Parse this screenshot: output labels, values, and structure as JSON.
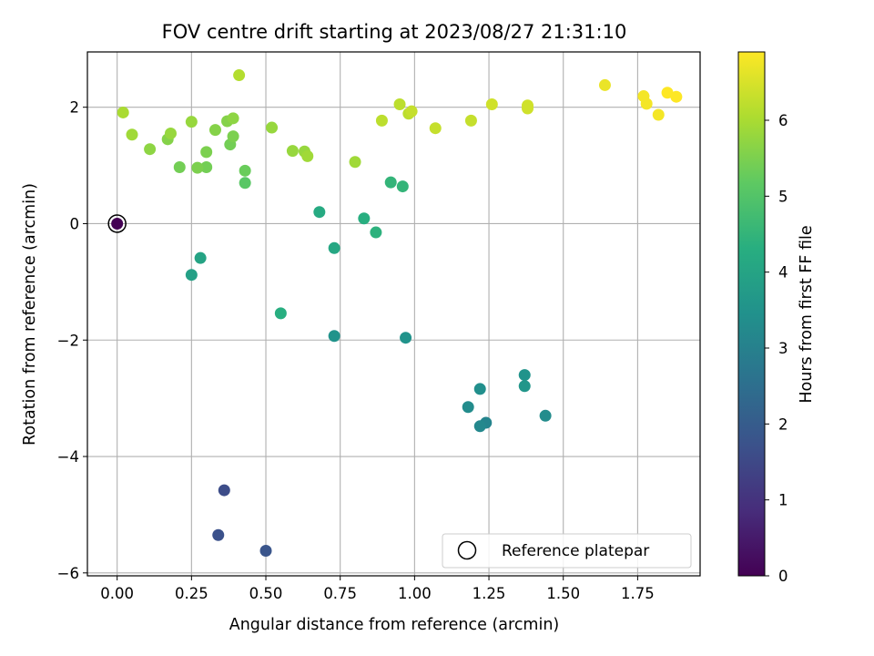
{
  "chart_data": {
    "type": "scatter",
    "title": "FOV centre drift starting at 2023/08/27 21:31:10",
    "xlabel": "Angular distance from reference (arcmin)",
    "ylabel": "Rotation from reference (arcmin)",
    "xlim": [
      -0.1,
      1.96
    ],
    "ylim": [
      -6.05,
      2.95
    ],
    "xticks": [
      0.0,
      0.25,
      0.5,
      0.75,
      1.0,
      1.25,
      1.5,
      1.75
    ],
    "xtick_labels": [
      "0.00",
      "0.25",
      "0.50",
      "0.75",
      "1.00",
      "1.25",
      "1.50",
      "1.75"
    ],
    "yticks": [
      -6,
      -4,
      -2,
      0,
      2
    ],
    "ytick_labels": [
      "−6",
      "−4",
      "−2",
      "0",
      "2"
    ],
    "grid": true,
    "colorbar": {
      "label": "Hours from first FF file",
      "range": [
        0,
        6.9
      ],
      "ticks": [
        0,
        1,
        2,
        3,
        4,
        5,
        6
      ],
      "tick_labels": [
        "0",
        "1",
        "2",
        "3",
        "4",
        "5",
        "6"
      ],
      "colormap": "viridis"
    },
    "legend": {
      "placement": "lower-right",
      "entries": [
        {
          "label": "Reference platepar",
          "marker": "open-circle"
        }
      ]
    },
    "reference_point": {
      "x": 0.0,
      "y": 0.0
    },
    "points": [
      {
        "x": 0.0,
        "y": 0.0,
        "h": 0.0
      },
      {
        "x": 0.36,
        "y": -4.58,
        "h": 1.6
      },
      {
        "x": 0.34,
        "y": -5.35,
        "h": 1.7
      },
      {
        "x": 0.5,
        "y": -5.62,
        "h": 1.8
      },
      {
        "x": 1.24,
        "y": -3.42,
        "h": 3.1
      },
      {
        "x": 1.22,
        "y": -3.48,
        "h": 3.2
      },
      {
        "x": 1.18,
        "y": -3.15,
        "h": 3.3
      },
      {
        "x": 1.22,
        "y": -2.84,
        "h": 3.4
      },
      {
        "x": 1.44,
        "y": -3.3,
        "h": 3.3
      },
      {
        "x": 1.37,
        "y": -2.6,
        "h": 3.5
      },
      {
        "x": 1.37,
        "y": -2.79,
        "h": 3.6
      },
      {
        "x": 0.73,
        "y": -1.93,
        "h": 3.5
      },
      {
        "x": 0.97,
        "y": -1.96,
        "h": 3.5
      },
      {
        "x": 0.25,
        "y": -0.88,
        "h": 3.9
      },
      {
        "x": 0.28,
        "y": -0.59,
        "h": 4.0
      },
      {
        "x": 0.55,
        "y": -1.54,
        "h": 4.3
      },
      {
        "x": 0.73,
        "y": -0.42,
        "h": 4.1
      },
      {
        "x": 0.68,
        "y": 0.2,
        "h": 4.2
      },
      {
        "x": 0.83,
        "y": 0.09,
        "h": 4.3
      },
      {
        "x": 0.87,
        "y": -0.15,
        "h": 4.4
      },
      {
        "x": 0.92,
        "y": 0.71,
        "h": 4.5
      },
      {
        "x": 0.96,
        "y": 0.64,
        "h": 4.5
      },
      {
        "x": 0.43,
        "y": 0.7,
        "h": 5.1
      },
      {
        "x": 0.43,
        "y": 0.91,
        "h": 5.3
      },
      {
        "x": 0.38,
        "y": 1.36,
        "h": 5.4
      },
      {
        "x": 0.3,
        "y": 0.97,
        "h": 5.4
      },
      {
        "x": 0.27,
        "y": 0.96,
        "h": 5.5
      },
      {
        "x": 0.21,
        "y": 0.97,
        "h": 5.4
      },
      {
        "x": 0.3,
        "y": 1.23,
        "h": 5.5
      },
      {
        "x": 0.33,
        "y": 1.61,
        "h": 5.6
      },
      {
        "x": 0.37,
        "y": 1.76,
        "h": 5.6
      },
      {
        "x": 0.39,
        "y": 1.5,
        "h": 5.5
      },
      {
        "x": 0.39,
        "y": 1.81,
        "h": 5.7
      },
      {
        "x": 0.25,
        "y": 1.75,
        "h": 5.8
      },
      {
        "x": 0.17,
        "y": 1.45,
        "h": 5.6
      },
      {
        "x": 0.18,
        "y": 1.55,
        "h": 5.8
      },
      {
        "x": 0.11,
        "y": 1.28,
        "h": 5.7
      },
      {
        "x": 0.05,
        "y": 1.53,
        "h": 5.9
      },
      {
        "x": 0.02,
        "y": 1.91,
        "h": 6.0
      },
      {
        "x": 0.41,
        "y": 2.55,
        "h": 6.1
      },
      {
        "x": 0.52,
        "y": 1.65,
        "h": 5.8
      },
      {
        "x": 0.59,
        "y": 1.25,
        "h": 5.8
      },
      {
        "x": 0.63,
        "y": 1.24,
        "h": 5.8
      },
      {
        "x": 0.64,
        "y": 1.16,
        "h": 5.9
      },
      {
        "x": 0.8,
        "y": 1.06,
        "h": 5.9
      },
      {
        "x": 0.89,
        "y": 1.77,
        "h": 6.2
      },
      {
        "x": 0.95,
        "y": 2.05,
        "h": 6.2
      },
      {
        "x": 0.98,
        "y": 1.89,
        "h": 6.2
      },
      {
        "x": 0.99,
        "y": 1.93,
        "h": 6.3
      },
      {
        "x": 1.07,
        "y": 1.64,
        "h": 6.3
      },
      {
        "x": 1.19,
        "y": 1.77,
        "h": 6.3
      },
      {
        "x": 1.26,
        "y": 2.05,
        "h": 6.4
      },
      {
        "x": 1.38,
        "y": 2.03,
        "h": 6.4
      },
      {
        "x": 1.38,
        "y": 1.98,
        "h": 6.4
      },
      {
        "x": 1.64,
        "y": 2.38,
        "h": 6.7
      },
      {
        "x": 1.77,
        "y": 2.19,
        "h": 6.8
      },
      {
        "x": 1.78,
        "y": 2.06,
        "h": 6.8
      },
      {
        "x": 1.82,
        "y": 1.87,
        "h": 6.8
      },
      {
        "x": 1.85,
        "y": 2.25,
        "h": 6.9
      },
      {
        "x": 1.88,
        "y": 2.18,
        "h": 6.9
      }
    ]
  }
}
